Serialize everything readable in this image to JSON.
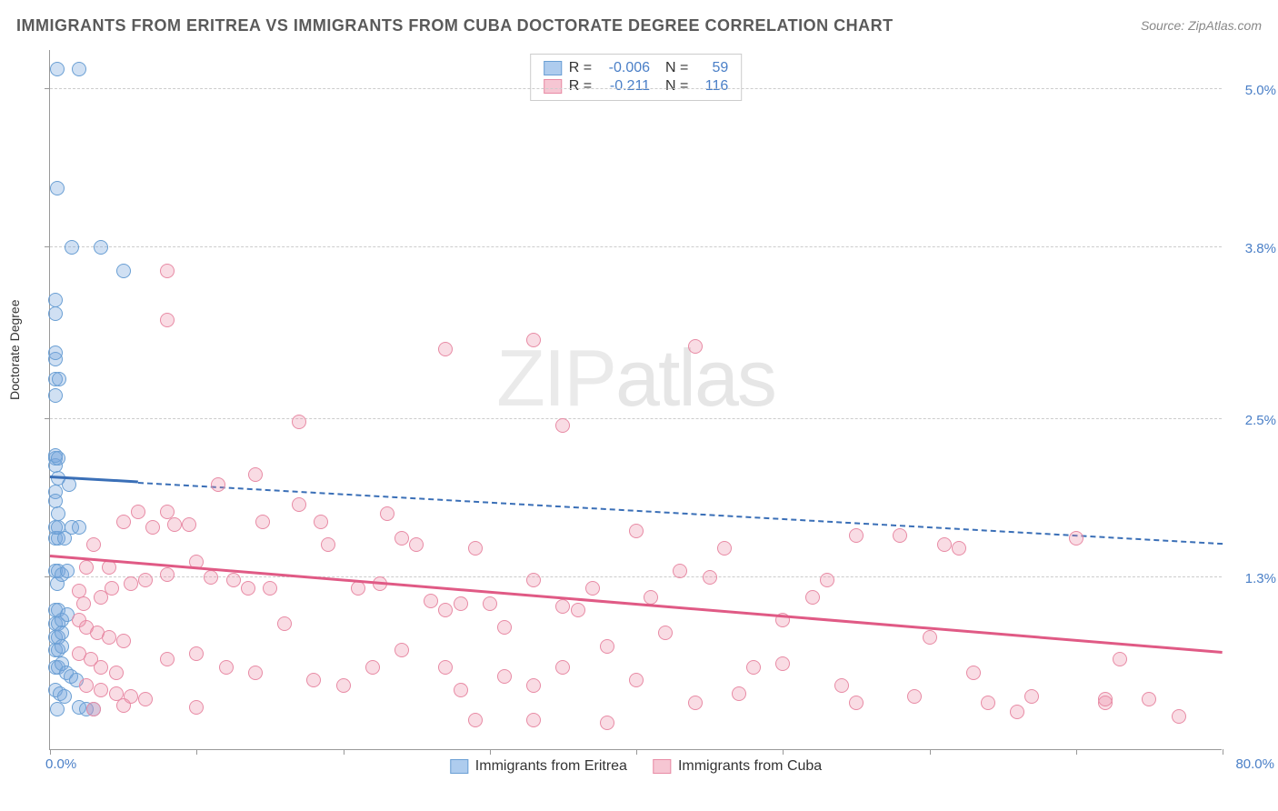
{
  "title": "IMMIGRANTS FROM ERITREA VS IMMIGRANTS FROM CUBA DOCTORATE DEGREE CORRELATION CHART",
  "source": "Source: ZipAtlas.com",
  "ylabel": "Doctorate Degree",
  "watermark_a": "ZIP",
  "watermark_b": "atlas",
  "chart": {
    "type": "scatter",
    "xlim": [
      0,
      80
    ],
    "ylim": [
      0,
      5.3
    ],
    "xtick_labels": {
      "min": "0.0%",
      "max": "80.0%"
    },
    "xtick_positions": [
      0,
      10,
      20,
      30,
      40,
      50,
      60,
      70,
      80
    ],
    "ytick_labels": [
      "1.3%",
      "2.5%",
      "3.8%",
      "5.0%"
    ],
    "ytick_positions": [
      1.3,
      2.5,
      3.8,
      5.0
    ],
    "grid_color": "#cccccc",
    "axis_color": "#999999",
    "background": "#ffffff",
    "marker_radius": 8,
    "marker_stroke": 1.5,
    "series": [
      {
        "name": "Immigrants from Eritrea",
        "color_fill": "rgba(120,165,220,0.35)",
        "color_stroke": "#6a9fd4",
        "swatch_fill": "#aeccee",
        "swatch_border": "#6a9fd4",
        "R": "-0.006",
        "N": "59",
        "trend": {
          "y_at_x0": 2.05,
          "y_at_xmax": 1.55,
          "color": "#3a6fb7",
          "solid_until_x": 6
        },
        "points": [
          [
            0.5,
            5.15
          ],
          [
            2.0,
            5.15
          ],
          [
            0.5,
            4.25
          ],
          [
            1.5,
            3.8
          ],
          [
            3.5,
            3.8
          ],
          [
            5.0,
            3.62
          ],
          [
            0.4,
            3.4
          ],
          [
            0.4,
            3.3
          ],
          [
            0.4,
            2.95
          ],
          [
            0.4,
            3.0
          ],
          [
            0.4,
            2.8
          ],
          [
            0.4,
            2.68
          ],
          [
            0.6,
            2.8
          ],
          [
            0.4,
            2.2
          ],
          [
            0.4,
            2.15
          ],
          [
            0.4,
            2.22
          ],
          [
            0.55,
            2.2
          ],
          [
            0.55,
            2.05
          ],
          [
            0.4,
            1.95
          ],
          [
            0.4,
            1.88
          ],
          [
            0.55,
            1.78
          ],
          [
            0.4,
            1.68
          ],
          [
            0.4,
            1.6
          ],
          [
            0.55,
            1.6
          ],
          [
            0.55,
            1.68
          ],
          [
            1.0,
            1.6
          ],
          [
            1.3,
            2.0
          ],
          [
            1.5,
            1.68
          ],
          [
            2.0,
            1.68
          ],
          [
            0.4,
            1.35
          ],
          [
            0.55,
            1.35
          ],
          [
            0.5,
            1.25
          ],
          [
            0.8,
            1.32
          ],
          [
            1.2,
            1.35
          ],
          [
            0.4,
            1.05
          ],
          [
            0.55,
            1.05
          ],
          [
            0.4,
            0.95
          ],
          [
            0.55,
            0.95
          ],
          [
            0.8,
            0.98
          ],
          [
            1.2,
            1.02
          ],
          [
            0.4,
            0.85
          ],
          [
            0.55,
            0.85
          ],
          [
            0.8,
            0.88
          ],
          [
            0.4,
            0.75
          ],
          [
            0.55,
            0.75
          ],
          [
            0.8,
            0.78
          ],
          [
            0.4,
            0.62
          ],
          [
            0.55,
            0.62
          ],
          [
            0.8,
            0.65
          ],
          [
            1.1,
            0.58
          ],
          [
            1.4,
            0.55
          ],
          [
            1.8,
            0.52
          ],
          [
            0.4,
            0.45
          ],
          [
            0.7,
            0.42
          ],
          [
            1.0,
            0.4
          ],
          [
            0.5,
            0.3
          ],
          [
            2.0,
            0.32
          ],
          [
            2.5,
            0.3
          ],
          [
            3.0,
            0.3
          ]
        ]
      },
      {
        "name": "Immigrants from Cuba",
        "color_fill": "rgba(235,140,165,0.3)",
        "color_stroke": "#e88ba5",
        "swatch_fill": "#f6c6d3",
        "swatch_border": "#e88ba5",
        "R": "-0.211",
        "N": "116",
        "trend": {
          "y_at_x0": 1.45,
          "y_at_xmax": 0.72,
          "color": "#e05a85",
          "solid_until_x": 80
        },
        "points": [
          [
            8.0,
            3.62
          ],
          [
            8.0,
            3.25
          ],
          [
            17.0,
            2.48
          ],
          [
            33.0,
            3.1
          ],
          [
            27.0,
            3.03
          ],
          [
            44.0,
            3.05
          ],
          [
            35.0,
            2.45
          ],
          [
            14.0,
            2.08
          ],
          [
            11.5,
            2.0
          ],
          [
            17.0,
            1.85
          ],
          [
            14.5,
            1.72
          ],
          [
            18.5,
            1.72
          ],
          [
            5.0,
            1.72
          ],
          [
            6.0,
            1.8
          ],
          [
            8.0,
            1.8
          ],
          [
            4.0,
            1.38
          ],
          [
            3.0,
            1.55
          ],
          [
            2.5,
            1.38
          ],
          [
            2.0,
            1.2
          ],
          [
            2.3,
            1.1
          ],
          [
            3.5,
            1.15
          ],
          [
            4.2,
            1.22
          ],
          [
            5.5,
            1.25
          ],
          [
            6.5,
            1.28
          ],
          [
            8.0,
            1.32
          ],
          [
            2.0,
            0.98
          ],
          [
            2.5,
            0.92
          ],
          [
            3.2,
            0.88
          ],
          [
            4.0,
            0.85
          ],
          [
            5.0,
            0.82
          ],
          [
            2.0,
            0.72
          ],
          [
            2.8,
            0.68
          ],
          [
            3.5,
            0.62
          ],
          [
            4.5,
            0.58
          ],
          [
            2.5,
            0.48
          ],
          [
            3.5,
            0.45
          ],
          [
            4.5,
            0.42
          ],
          [
            5.5,
            0.4
          ],
          [
            6.5,
            0.38
          ],
          [
            3.0,
            0.3
          ],
          [
            5.0,
            0.33
          ],
          [
            7.0,
            1.68
          ],
          [
            8.5,
            1.7
          ],
          [
            9.5,
            1.7
          ],
          [
            10.0,
            1.42
          ],
          [
            11.0,
            1.3
          ],
          [
            12.5,
            1.28
          ],
          [
            13.5,
            1.22
          ],
          [
            15.0,
            1.22
          ],
          [
            19.0,
            1.55
          ],
          [
            21.0,
            1.22
          ],
          [
            22.5,
            1.25
          ],
          [
            23.0,
            1.78
          ],
          [
            24.0,
            1.6
          ],
          [
            25.0,
            1.55
          ],
          [
            26.0,
            1.12
          ],
          [
            27.0,
            1.05
          ],
          [
            28.0,
            1.1
          ],
          [
            29.0,
            1.52
          ],
          [
            30.0,
            1.1
          ],
          [
            31.0,
            0.92
          ],
          [
            33.0,
            1.28
          ],
          [
            35.0,
            1.08
          ],
          [
            36.0,
            1.05
          ],
          [
            37.0,
            1.22
          ],
          [
            38.0,
            0.78
          ],
          [
            40.0,
            1.65
          ],
          [
            41.0,
            1.15
          ],
          [
            42.0,
            0.88
          ],
          [
            43.0,
            1.35
          ],
          [
            45.0,
            1.3
          ],
          [
            46.0,
            1.52
          ],
          [
            48.0,
            0.62
          ],
          [
            50.0,
            0.98
          ],
          [
            52.0,
            1.15
          ],
          [
            53.0,
            1.28
          ],
          [
            55.0,
            1.62
          ],
          [
            58.0,
            1.62
          ],
          [
            61.0,
            1.55
          ],
          [
            60.0,
            0.85
          ],
          [
            63.0,
            0.58
          ],
          [
            8.0,
            0.68
          ],
          [
            10.0,
            0.72
          ],
          [
            12.0,
            0.62
          ],
          [
            14.0,
            0.58
          ],
          [
            16.0,
            0.95
          ],
          [
            18.0,
            0.52
          ],
          [
            20.0,
            0.48
          ],
          [
            22.0,
            0.62
          ],
          [
            24.0,
            0.75
          ],
          [
            27.0,
            0.62
          ],
          [
            29.0,
            0.22
          ],
          [
            31.0,
            0.55
          ],
          [
            33.0,
            0.22
          ],
          [
            35.0,
            0.62
          ],
          [
            38.0,
            0.2
          ],
          [
            40.0,
            0.52
          ],
          [
            28.0,
            0.45
          ],
          [
            33.0,
            0.48
          ],
          [
            44.0,
            0.35
          ],
          [
            47.0,
            0.42
          ],
          [
            50.0,
            0.65
          ],
          [
            54.0,
            0.48
          ],
          [
            55.0,
            0.35
          ],
          [
            59.0,
            0.4
          ],
          [
            62.0,
            1.52
          ],
          [
            64.0,
            0.35
          ],
          [
            67.0,
            0.4
          ],
          [
            66.0,
            0.28
          ],
          [
            70.0,
            1.6
          ],
          [
            72.0,
            0.35
          ],
          [
            73.0,
            0.68
          ],
          [
            75.0,
            0.38
          ],
          [
            77.0,
            0.25
          ],
          [
            72.0,
            0.38
          ],
          [
            10.0,
            0.32
          ]
        ]
      }
    ]
  }
}
